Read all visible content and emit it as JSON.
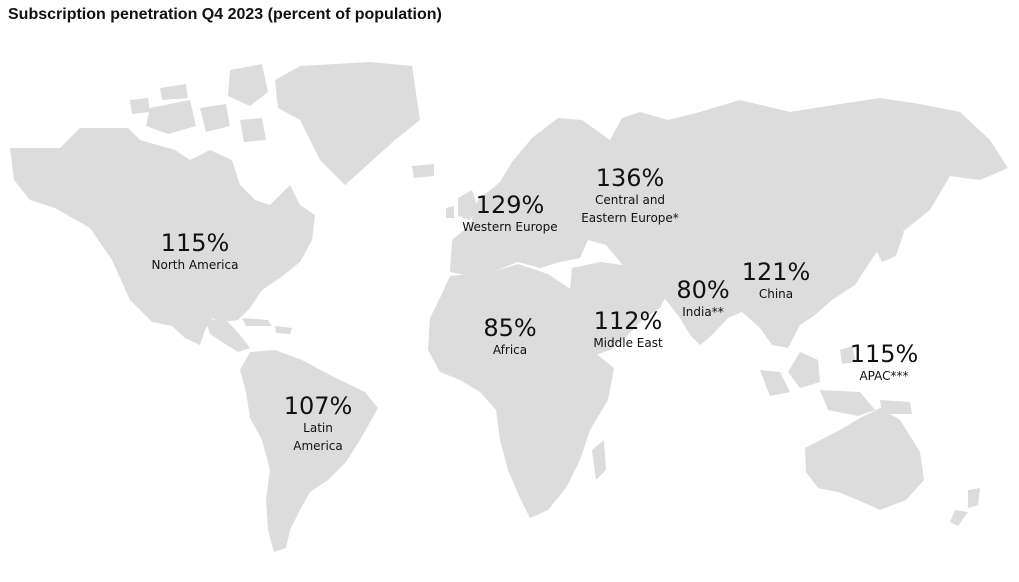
{
  "title": "Subscription penetration Q4 2023 (percent of population)",
  "land_color": "#dcdcdc",
  "regions": [
    {
      "id": "north-america",
      "value": "115%",
      "label": "North America"
    },
    {
      "id": "latin-america",
      "value": "107%",
      "label": "Latin\nAmerica"
    },
    {
      "id": "western-europe",
      "value": "129%",
      "label": "Western Europe"
    },
    {
      "id": "central-eastern-europe",
      "value": "136%",
      "label": "Central and\nEastern Europe*"
    },
    {
      "id": "africa",
      "value": "85%",
      "label": "Africa"
    },
    {
      "id": "middle-east",
      "value": "112%",
      "label": "Middle East"
    },
    {
      "id": "india",
      "value": "80%",
      "label": "India**"
    },
    {
      "id": "china",
      "value": "121%",
      "label": "China"
    },
    {
      "id": "apac",
      "value": "115%",
      "label": "APAC***"
    }
  ]
}
